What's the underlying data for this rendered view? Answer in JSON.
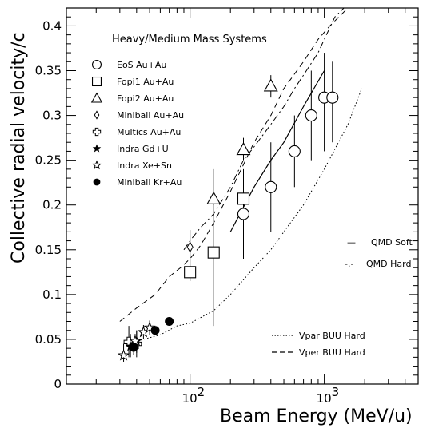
{
  "chart_data": {
    "type": "scatter",
    "title": "Heavy/Medium Mass Systems",
    "xlabel": "Beam Energy (MeV/u)",
    "ylabel": "Collective radial velocity/c",
    "xscale": "log",
    "xlim": [
      12,
      5000
    ],
    "ylim": [
      0,
      0.42
    ],
    "yticks": [
      0,
      0.05,
      0.1,
      0.15,
      0.2,
      0.25,
      0.3,
      0.35,
      0.4
    ],
    "ytick_labels": [
      "0",
      "0.05",
      "0.1",
      "0.15",
      "0.2",
      "0.25",
      "0.3",
      "0.35",
      "0.4"
    ],
    "xticks": [
      100,
      1000
    ],
    "xtick_labels": [
      "10",
      "10"
    ],
    "xtick_exponents": [
      "2",
      "3"
    ],
    "legend_position": "upper-left",
    "series": [
      {
        "name": "EoS Au+Au",
        "marker": "circle-open",
        "points": [
          {
            "x": 250,
            "y": 0.19,
            "ylo": 0.14,
            "yhi": 0.24
          },
          {
            "x": 400,
            "y": 0.22,
            "ylo": 0.17,
            "yhi": 0.27
          },
          {
            "x": 600,
            "y": 0.26,
            "ylo": 0.22,
            "yhi": 0.3
          },
          {
            "x": 800,
            "y": 0.3,
            "ylo": 0.25,
            "yhi": 0.35
          },
          {
            "x": 1000,
            "y": 0.32,
            "ylo": 0.26,
            "yhi": 0.37
          },
          {
            "x": 1150,
            "y": 0.32,
            "ylo": 0.27,
            "yhi": 0.36
          }
        ]
      },
      {
        "name": "Fopi1 Au+Au",
        "marker": "square-open",
        "points": [
          {
            "x": 100,
            "y": 0.125,
            "ylo": 0.115,
            "yhi": 0.135
          },
          {
            "x": 150,
            "y": 0.147,
            "ylo": 0.065,
            "yhi": 0.24
          },
          {
            "x": 250,
            "y": 0.207,
            "ylo": 0.19,
            "yhi": 0.22
          }
        ]
      },
      {
        "name": "Fopi2 Au+Au",
        "marker": "triangle-open",
        "points": [
          {
            "x": 150,
            "y": 0.207,
            "ylo": 0.2,
            "yhi": 0.215
          },
          {
            "x": 250,
            "y": 0.262,
            "ylo": 0.25,
            "yhi": 0.275
          },
          {
            "x": 400,
            "y": 0.333,
            "ylo": 0.32,
            "yhi": 0.345
          }
        ]
      },
      {
        "name": "Miniball Au+Au",
        "marker": "diamond-open",
        "points": [
          {
            "x": 100,
            "y": 0.153,
            "ylo": 0.135,
            "yhi": 0.172
          }
        ]
      },
      {
        "name": "Multics Au+Au",
        "marker": "cross-open",
        "points": [
          {
            "x": 35,
            "y": 0.047,
            "ylo": 0.03,
            "yhi": 0.065
          },
          {
            "x": 40,
            "y": 0.045,
            "ylo": 0.03,
            "yhi": 0.06
          }
        ]
      },
      {
        "name": "Indra Gd+U",
        "marker": "star-filled",
        "points": [
          {
            "x": 36,
            "y": 0.042,
            "ylo": 0.03,
            "yhi": 0.056
          },
          {
            "x": 40,
            "y": 0.048,
            "ylo": 0.035,
            "yhi": 0.06
          }
        ]
      },
      {
        "name": "Indra Xe+Sn",
        "marker": "star-open",
        "points": [
          {
            "x": 32,
            "y": 0.032,
            "ylo": 0.025,
            "yhi": 0.045
          },
          {
            "x": 39,
            "y": 0.048,
            "ylo": 0.04,
            "yhi": 0.056
          },
          {
            "x": 45,
            "y": 0.058,
            "ylo": 0.05,
            "yhi": 0.066
          },
          {
            "x": 50,
            "y": 0.063,
            "ylo": 0.055,
            "yhi": 0.071
          }
        ]
      },
      {
        "name": "Miniball Kr+Au",
        "marker": "circle-filled",
        "points": [
          {
            "x": 38,
            "y": 0.041,
            "ylo": 0.033,
            "yhi": 0.05
          },
          {
            "x": 55,
            "y": 0.06,
            "ylo": 0.057,
            "yhi": 0.063
          },
          {
            "x": 70,
            "y": 0.07,
            "ylo": 0.067,
            "yhi": 0.073
          }
        ]
      }
    ],
    "curves": [
      {
        "name": "Vper  BUU Hard",
        "style": "dashed",
        "points": [
          [
            30,
            0.07
          ],
          [
            40,
            0.085
          ],
          [
            55,
            0.1
          ],
          [
            70,
            0.12
          ],
          [
            85,
            0.13
          ],
          [
            100,
            0.14
          ],
          [
            120,
            0.155
          ],
          [
            150,
            0.18
          ],
          [
            200,
            0.215
          ],
          [
            250,
            0.245
          ],
          [
            300,
            0.27
          ],
          [
            400,
            0.3
          ],
          [
            500,
            0.33
          ],
          [
            700,
            0.36
          ],
          [
            900,
            0.385
          ],
          [
            1100,
            0.4
          ],
          [
            1500,
            0.42
          ]
        ]
      },
      {
        "name": "QMD Hard",
        "style": "dash-dot",
        "points": [
          [
            90,
            0.15
          ],
          [
            100,
            0.16
          ],
          [
            120,
            0.175
          ],
          [
            150,
            0.19
          ],
          [
            200,
            0.22
          ],
          [
            250,
            0.25
          ],
          [
            300,
            0.265
          ],
          [
            400,
            0.29
          ],
          [
            500,
            0.31
          ],
          [
            600,
            0.33
          ],
          [
            700,
            0.345
          ],
          [
            900,
            0.37
          ],
          [
            1000,
            0.385
          ],
          [
            1200,
            0.41
          ],
          [
            1400,
            0.42
          ]
        ]
      },
      {
        "name": "Vpar  BUU Hard",
        "style": "dotted",
        "points": [
          [
            35,
            0.045
          ],
          [
            45,
            0.05
          ],
          [
            60,
            0.055
          ],
          [
            80,
            0.065
          ],
          [
            100,
            0.068
          ],
          [
            150,
            0.082
          ],
          [
            200,
            0.1
          ],
          [
            300,
            0.13
          ],
          [
            400,
            0.15
          ],
          [
            500,
            0.17
          ],
          [
            700,
            0.2
          ],
          [
            1000,
            0.24
          ],
          [
            1500,
            0.29
          ],
          [
            1900,
            0.33
          ]
        ]
      },
      {
        "name": "QMD Soft",
        "style": "solid",
        "points": [
          [
            200,
            0.17
          ],
          [
            300,
            0.22
          ],
          [
            400,
            0.25
          ],
          [
            500,
            0.27
          ],
          [
            700,
            0.31
          ],
          [
            1000,
            0.35
          ]
        ]
      }
    ],
    "curve_legend": {
      "qmd_soft_symbol": "—",
      "qmd_soft_label": "QMD Soft",
      "qmd_hard_symbol": "-.-",
      "qmd_hard_label": "QMD Hard",
      "vpar_label": "Vpar  BUU Hard",
      "vper_label": "Vper  BUU Hard"
    }
  }
}
